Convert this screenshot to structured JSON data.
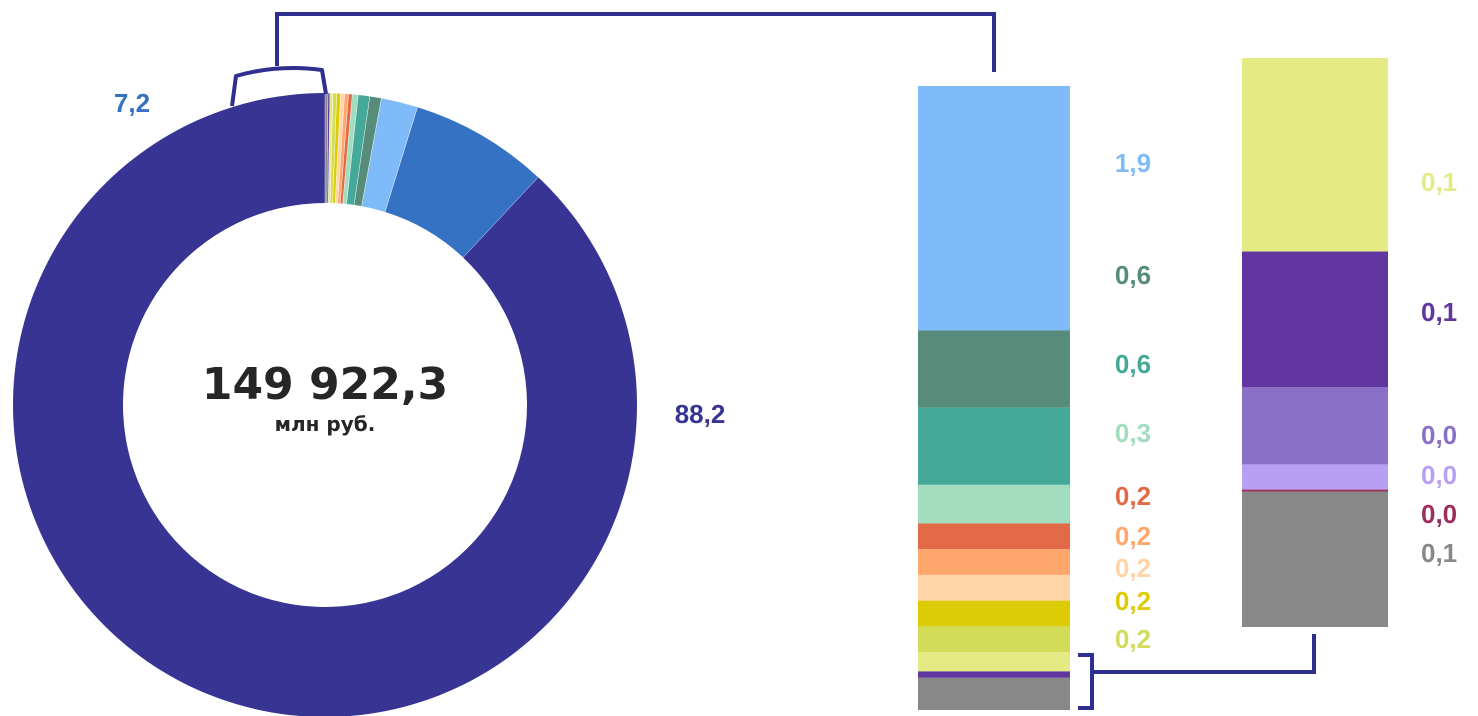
{
  "chart_data": [
    {
      "type": "pie",
      "variant": "donut",
      "center_value": "149 922,3",
      "center_unit": "млн руб.",
      "slices": [
        {
          "label": "88,2",
          "value": 88.2,
          "color": "#373494"
        },
        {
          "label": "7,2",
          "value": 7.2,
          "color": "#3572C3"
        },
        {
          "label": "",
          "value": 1.9,
          "color": "#7FBAF9"
        },
        {
          "label": "",
          "value": 0.6,
          "color": "#578C7A"
        },
        {
          "label": "",
          "value": 0.6,
          "color": "#45A999"
        },
        {
          "label": "",
          "value": 0.3,
          "color": "#A3DDBF"
        },
        {
          "label": "",
          "value": 0.2,
          "color": "#E26A46"
        },
        {
          "label": "",
          "value": 0.2,
          "color": "#FFA66D"
        },
        {
          "label": "",
          "value": 0.2,
          "color": "#FFD4A6"
        },
        {
          "label": "",
          "value": 0.2,
          "color": "#DDCC05"
        },
        {
          "label": "",
          "value": 0.2,
          "color": "#D2DC58"
        },
        {
          "label": "",
          "value": 0.15,
          "color": "#E4EA84"
        },
        {
          "label": "",
          "value": 0.1,
          "color": "#6236A0"
        },
        {
          "label": "",
          "value": 0.15,
          "color": "#888888"
        }
      ]
    },
    {
      "type": "bar",
      "variant": "stacked-column",
      "segments": [
        {
          "label": "1,9",
          "value": 1.9,
          "color": "#7FBAF9",
          "label_color": "#7FBAF9"
        },
        {
          "label": "0,6",
          "value": 0.6,
          "color": "#578C7A",
          "label_color": "#578C7A"
        },
        {
          "label": "0,6",
          "value": 0.6,
          "color": "#45A999",
          "label_color": "#45A999"
        },
        {
          "label": "0,3",
          "value": 0.3,
          "color": "#A3DDBF",
          "label_color": "#A3DDBF"
        },
        {
          "label": "0,2",
          "value": 0.2,
          "color": "#E26A46",
          "label_color": "#E26A46"
        },
        {
          "label": "0,2",
          "value": 0.2,
          "color": "#FFA66D",
          "label_color": "#FFA66D"
        },
        {
          "label": "0,2",
          "value": 0.2,
          "color": "#FFD4A6",
          "label_color": "#FFD4A6"
        },
        {
          "label": "0,2",
          "value": 0.2,
          "color": "#DDCC05",
          "label_color": "#DDCC05"
        },
        {
          "label": "0,2",
          "value": 0.2,
          "color": "#D2DC58",
          "label_color": "#D2DC58"
        },
        {
          "label": "",
          "value": 0.15,
          "color": "#E4EA84",
          "label_color": "#E4EA84"
        },
        {
          "label": "",
          "value": 0.05,
          "color": "#6236A0",
          "label_color": "#6236A0"
        },
        {
          "label": "",
          "value": 0.25,
          "color": "#888888",
          "label_color": "#888888"
        }
      ]
    },
    {
      "type": "bar",
      "variant": "stacked-column",
      "segments": [
        {
          "label": "0,1",
          "value": 0.1,
          "color": "#E4EA84",
          "label_color": "#E4EA84"
        },
        {
          "label": "0,1",
          "value": 0.07,
          "color": "#6236A0",
          "label_color": "#6236A0"
        },
        {
          "label": "0,0",
          "value": 0.04,
          "color": "#8A70C6",
          "label_color": "#8A70C6"
        },
        {
          "label": "0,0",
          "value": 0.013,
          "color": "#B7A0F4",
          "label_color": "#B7A0F4"
        },
        {
          "label": "0,0",
          "value": 0.001,
          "color": "#9B2F5D",
          "label_color": "#9B2F5D"
        },
        {
          "label": "0,1",
          "value": 0.07,
          "color": "#888888",
          "label_color": "#888888"
        }
      ]
    }
  ],
  "colors": {
    "connector": "#2F2F8F",
    "center_text": "#262626",
    "label_main": "#373494",
    "label_second": "#3572C3"
  }
}
